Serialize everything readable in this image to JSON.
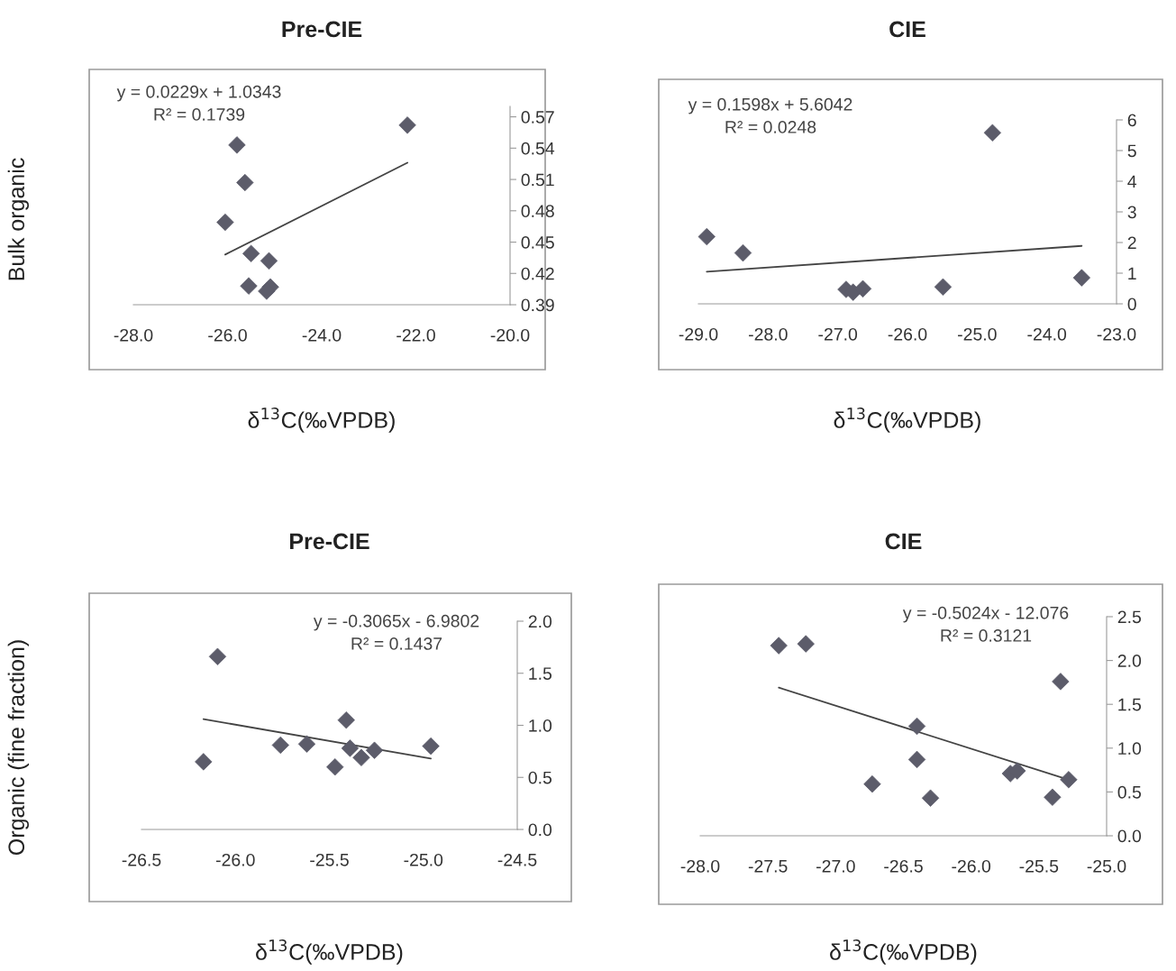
{
  "chart_data": [
    {
      "type": "scatter",
      "title": "Pre-CIE",
      "xlabel": "δ$^{13}$C(‰VPDB)",
      "ylabel": "Bulk organic",
      "marker": "diamond",
      "grid": false,
      "xlim": [
        -28.0,
        -20.0
      ],
      "xticks": [
        {
          "value": -28.0,
          "label": "-28.0"
        },
        {
          "value": -26.0,
          "label": "-26.0"
        },
        {
          "value": -24.0,
          "label": "-24.0"
        },
        {
          "value": -22.0,
          "label": "-22.0"
        },
        {
          "value": -20.0,
          "label": "-20.0"
        }
      ],
      "ylim": [
        0.39,
        0.58
      ],
      "yticks": [
        0.39,
        0.42,
        0.45,
        0.48,
        0.51,
        0.54,
        0.57
      ],
      "series": [
        {
          "color": "#5c5c6a",
          "x": [
            -25.8,
            -25.63,
            -26.05,
            -22.18,
            -25.5,
            -25.12,
            -25.55,
            -25.09,
            -25.17
          ],
          "values": [
            0.543,
            0.507,
            0.469,
            0.562,
            0.439,
            0.432,
            0.408,
            0.407,
            0.403
          ]
        },
        {
          "type": "line",
          "marker": "none",
          "color": "#444444",
          "x": [
            -26.05,
            -22.18
          ],
          "values": [
            0.438,
            0.526
          ]
        }
      ],
      "annotations": [
        "y = 0.0229x + 1.0343\nR² = 0.1739"
      ]
    },
    {
      "type": "scatter",
      "title": "CIE",
      "xlabel": "δ$^{13}$C(‰VPDB)",
      "marker": "diamond",
      "grid": false,
      "xlim": [
        -29.0,
        -23.0
      ],
      "xticks": [
        {
          "value": -29.0,
          "label": "-29.0"
        },
        {
          "value": -28.0,
          "label": "-28.0"
        },
        {
          "value": -27.0,
          "label": "-27.0"
        },
        {
          "value": -26.0,
          "label": "-26.0"
        },
        {
          "value": -25.0,
          "label": "-25.0"
        },
        {
          "value": -24.0,
          "label": "-24.0"
        },
        {
          "value": -23.0,
          "label": "-23.0"
        }
      ],
      "ylim": [
        0,
        6
      ],
      "yticks": [
        0,
        1,
        2,
        3,
        4,
        5,
        6
      ],
      "series": [
        {
          "color": "#5c5c6a",
          "x": [
            -28.88,
            -28.36,
            -26.88,
            -26.78,
            -26.64,
            -25.49,
            -24.78,
            -23.5
          ],
          "values": [
            2.19,
            1.66,
            0.47,
            0.38,
            0.49,
            0.55,
            5.58,
            0.85
          ]
        },
        {
          "type": "line",
          "marker": "none",
          "color": "#444444",
          "x": [
            -28.88,
            -23.5
          ],
          "values": [
            1.05,
            1.89
          ]
        }
      ],
      "annotations": [
        "y = 0.1598x + 5.6042\nR² = 0.0248"
      ]
    },
    {
      "type": "scatter",
      "title": "Pre-CIE",
      "xlabel": "δ$^{13}$C(‰VPDB)",
      "ylabel": "Organic (fine fraction)",
      "marker": "diamond",
      "grid": false,
      "xlim": [
        -26.5,
        -24.5
      ],
      "xticks": [
        -26.5,
        {
          "value": -26.0,
          "label": "-26.0"
        },
        -25.5,
        {
          "value": -25.0,
          "label": "-25.0"
        },
        -24.5
      ],
      "ylim": [
        0.0,
        2.0
      ],
      "yticks": [
        {
          "value": 0.0,
          "label": "0.0"
        },
        0.5,
        {
          "value": 1.0,
          "label": "1.0"
        },
        1.5,
        {
          "value": 2.0,
          "label": "2.0"
        }
      ],
      "series": [
        {
          "color": "#5c5c6a",
          "x": [
            -26.095,
            -26.17,
            -25.76,
            -25.62,
            -25.47,
            -25.41,
            -25.39,
            -25.33,
            -25.26,
            -24.96
          ],
          "values": [
            1.66,
            0.65,
            0.81,
            0.82,
            0.6,
            1.05,
            0.78,
            0.69,
            0.76,
            0.8
          ]
        },
        {
          "type": "line",
          "marker": "none",
          "color": "#444444",
          "x": [
            -26.17,
            -24.96
          ],
          "values": [
            1.06,
            0.68
          ]
        }
      ],
      "annotations": [
        "y = -0.3065x - 6.9802\nR² = 0.1437"
      ]
    },
    {
      "type": "scatter",
      "title": "CIE",
      "xlabel": "δ$^{13}$C(‰VPDB)",
      "marker": "diamond",
      "grid": false,
      "xlim": [
        -28.0,
        -25.0
      ],
      "xticks": [
        {
          "value": -28.0,
          "label": "-28.0"
        },
        -27.5,
        {
          "value": -27.0,
          "label": "-27.0"
        },
        -26.5,
        {
          "value": -26.0,
          "label": "-26.0"
        },
        -25.5,
        {
          "value": -25.0,
          "label": "-25.0"
        }
      ],
      "ylim": [
        0.0,
        2.5
      ],
      "yticks": [
        {
          "value": 0.0,
          "label": "0.0"
        },
        0.5,
        {
          "value": 1.0,
          "label": "1.0"
        },
        1.5,
        {
          "value": 2.0,
          "label": "2.0"
        },
        2.5
      ],
      "series": [
        {
          "color": "#5c5c6a",
          "x": [
            -27.42,
            -27.22,
            -26.73,
            -26.4,
            -26.4,
            -26.3,
            -25.71,
            -25.66,
            -25.4,
            -25.34,
            -25.28
          ],
          "values": [
            2.17,
            2.19,
            0.59,
            1.25,
            0.87,
            0.43,
            0.71,
            0.74,
            0.44,
            1.76,
            0.64
          ]
        },
        {
          "type": "line",
          "marker": "none",
          "color": "#444444",
          "x": [
            -27.42,
            -25.28
          ],
          "values": [
            1.69,
            0.64
          ]
        }
      ],
      "annotations": [
        "y = -0.5024x - 12.076\nR² = 0.3121"
      ]
    }
  ]
}
